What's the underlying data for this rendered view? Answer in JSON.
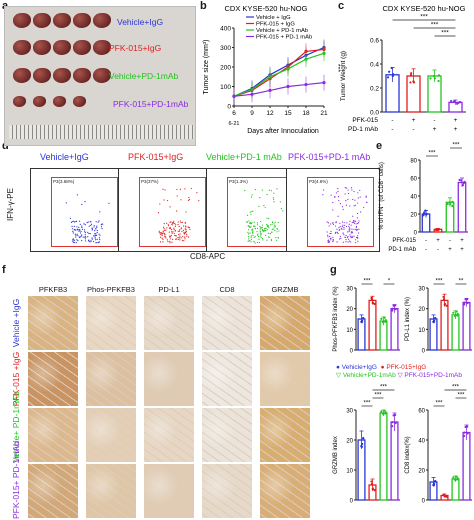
{
  "panel_labels": {
    "a": "a",
    "b": "b",
    "c": "c",
    "d": "d",
    "e": "e",
    "f": "f",
    "g": "g"
  },
  "colors": {
    "vehicle": "#2a35d8",
    "pfk": "#e21d1d",
    "pd1": "#22c41f",
    "combo": "#8a2be2",
    "axis": "#222222"
  },
  "panel_a": {
    "groups": [
      "Vehicle+IgG",
      "PFK-015+IgG",
      "Vehicle+PD-1mAb",
      "PFK-015+PD-1mAb"
    ],
    "tumors_per_row": [
      5,
      5,
      5,
      4
    ]
  },
  "chart_data": [
    {
      "id": "b",
      "type": "line",
      "title": "CDX KYSE-520 hu-NOG",
      "xlabel": "Days after Innoculation",
      "ylabel": "Tumor size (mm³)",
      "x": [
        6,
        9,
        12,
        15,
        18,
        21
      ],
      "xticks": [
        "6",
        "9",
        "12",
        "15",
        "18",
        "21"
      ],
      "x_sublabel": "6-21",
      "ylim": [
        0,
        400
      ],
      "yticks": [
        "0",
        "100",
        "200",
        "300",
        "400"
      ],
      "significance": "***",
      "series": [
        {
          "name": "Vehicle + IgG",
          "values": [
            50,
            90,
            160,
            210,
            260,
            300
          ]
        },
        {
          "name": "PFK-015 + IgG",
          "values": [
            50,
            80,
            140,
            200,
            280,
            290
          ]
        },
        {
          "name": "Vehicle + PD-1 mAb",
          "values": [
            50,
            85,
            150,
            190,
            240,
            270
          ]
        },
        {
          "name": "PFK-015 + PD-1 mAb",
          "values": [
            50,
            60,
            80,
            100,
            110,
            120
          ]
        }
      ]
    },
    {
      "id": "c",
      "type": "bar",
      "title": "CDX KYSE-520 hu-NOG",
      "ylabel": "Tumor Weight (g)",
      "categories": [
        "Vehicle+IgG",
        "PFK-015+IgG",
        "Vehicle+PD-1 mAb",
        "PFK-015+PD-1 mAb"
      ],
      "values": [
        0.31,
        0.3,
        0.3,
        0.08
      ],
      "errors": [
        0.06,
        0.06,
        0.05,
        0.02
      ],
      "ylim": [
        0,
        0.6
      ],
      "yticks": [
        "0.0",
        "0.2",
        "0.4",
        "0.6"
      ],
      "significance": [
        "***",
        "***",
        "***"
      ],
      "treatment_rows": [
        {
          "label": "PFK-015",
          "marks": [
            "-",
            "+",
            "-",
            "+"
          ]
        },
        {
          "label": "PD-1 mAb",
          "marks": [
            "-",
            "-",
            "+",
            "+"
          ]
        }
      ]
    },
    {
      "id": "e",
      "type": "bar",
      "ylabel": "% of IFN⁺ (of CD8⁺ cells)",
      "categories": [
        "Vehicle+IgG",
        "PFK-015+IgG",
        "Vehicle+PD-1 mAb",
        "PFK-015+PD-1 mAb"
      ],
      "values": [
        20,
        3,
        33,
        55
      ],
      "errors": [
        4,
        1,
        5,
        5
      ],
      "ylim": [
        0,
        80
      ],
      "yticks": [
        "0",
        "20",
        "40",
        "60",
        "80"
      ],
      "significance": [
        "***",
        "***"
      ],
      "treatment_rows": [
        {
          "label": "PFK-015",
          "marks": [
            "-",
            "+",
            "-",
            "+"
          ]
        },
        {
          "label": "PD-1 mAb",
          "marks": [
            "-",
            "-",
            "+",
            "+"
          ]
        }
      ]
    },
    {
      "id": "g1",
      "type": "bar",
      "ylabel": "Phos-PFKFB3 index (%)",
      "categories": [
        "Vehicle+IgG",
        "PFK-015+IgG",
        "Vehicle+PD-1 mAb",
        "PFK-015+PD-1 mAb"
      ],
      "values": [
        15,
        24,
        14,
        20
      ],
      "errors": [
        2,
        2,
        2,
        2
      ],
      "ylim": [
        0,
        30
      ],
      "yticks": [
        "0",
        "10",
        "20",
        "30"
      ],
      "significance": [
        "***",
        "*"
      ]
    },
    {
      "id": "g2",
      "type": "bar",
      "ylabel": "PD-L1 index (%)",
      "categories": [
        "Vehicle+IgG",
        "PFK-015+IgG",
        "Vehicle+PD-1 mAb",
        "PFK-015+PD-1 mAb"
      ],
      "values": [
        15,
        24,
        17,
        23
      ],
      "errors": [
        2,
        3,
        2,
        2
      ],
      "ylim": [
        0,
        30
      ],
      "yticks": [
        "0",
        "10",
        "20",
        "30"
      ],
      "significance": [
        "***",
        "**"
      ]
    },
    {
      "id": "g3",
      "type": "bar",
      "ylabel": "GRZMB index",
      "categories": [
        "Vehicle+IgG",
        "PFK-015+IgG",
        "Vehicle+PD-1 mAb",
        "PFK-015+PD-1 mAb"
      ],
      "values": [
        20,
        5,
        29,
        26
      ],
      "errors": [
        3,
        2,
        1,
        3
      ],
      "ylim": [
        0,
        30
      ],
      "yticks": [
        "0",
        "10",
        "20",
        "30"
      ],
      "significance": [
        "***",
        "***",
        "***"
      ]
    },
    {
      "id": "g4",
      "type": "bar",
      "ylabel": "CD8 index(%)",
      "categories": [
        "Vehicle+IgG",
        "PFK-015+IgG",
        "Vehicle+PD-1 mAb",
        "PFK-015+PD-1 mAb"
      ],
      "values": [
        12,
        3,
        14,
        45
      ],
      "errors": [
        3,
        1,
        2,
        5
      ],
      "ylim": [
        0,
        60
      ],
      "yticks": [
        "0",
        "20",
        "40",
        "60"
      ],
      "significance": [
        "***",
        "***",
        "***"
      ]
    }
  ],
  "g_legend": [
    "Vehicle+IgG",
    "PFK-015+IgG",
    "Vehicle+PD-1mAb",
    "PFK-015+PD-1mAb"
  ],
  "panel_d": {
    "groups": [
      "Vehicle+IgG",
      "PFK-015+IgG",
      "Vehicle+PD-1 mAb",
      "PFK-015+PD-1 mAb"
    ],
    "gates": [
      "P3(3.68%)",
      "P3(37%)",
      "P3(1.3%)",
      "P3(4.6%)"
    ],
    "ylabel": "IFN-γ-PE",
    "xlabel": "CD8-APC"
  },
  "panel_f": {
    "columns": [
      "PFKFB3",
      "Phos-PFKFB3",
      "PD-L1",
      "CD8",
      "GRZMB"
    ],
    "rows": [
      "Vehicle +IgG",
      "PFK-015 +IgG",
      "Vehicle+ PD-1mAb",
      "PFK-015+ PD-1mAb"
    ]
  }
}
